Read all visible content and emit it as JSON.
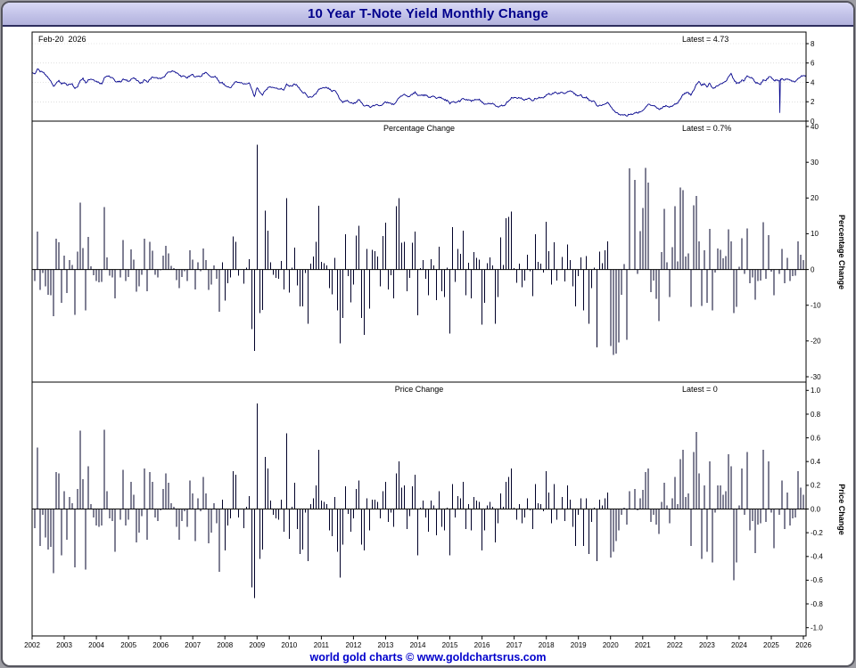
{
  "window": {
    "title": "10 Year T-Note Yield Monthly Change"
  },
  "footer": {
    "text": "world gold charts © www.goldchartsrus.com"
  },
  "colors": {
    "line": "#00008b",
    "bar": "#000028",
    "title_text": "#00008b",
    "titlebar_bg": "#c2c2e8",
    "footer_text": "#0000cc",
    "panel_border": "#000000",
    "grid_dotted": "#c9c9c9"
  },
  "x_axis": {
    "years": [
      "2002",
      "2003",
      "2004",
      "2005",
      "2006",
      "2007",
      "2008",
      "2009",
      "2010",
      "2011",
      "2012",
      "2013",
      "2014",
      "2015",
      "2016",
      "2017",
      "2018",
      "2019",
      "2020",
      "2021",
      "2022",
      "2023",
      "2024",
      "2025",
      "2026"
    ]
  },
  "chart_data": [
    {
      "type": "line",
      "name": "yield",
      "date_label": "Feb-20  2026",
      "latest_label": "Latest = 4.73",
      "latest_value": 4.73,
      "frequency": "monthly",
      "x_start": "2002-01",
      "x_end": "2026-02",
      "ylim": [
        0,
        9.2
      ],
      "yticks": [
        "8",
        "6",
        "4",
        "2",
        "0"
      ],
      "anomaly": {
        "index": 279,
        "low": 0.85
      },
      "values": [
        5.04,
        4.88,
        5.4,
        5.09,
        5.04,
        4.8,
        4.46,
        4.14,
        3.6,
        3.91,
        4.21,
        3.82,
        3.97,
        3.71,
        3.81,
        3.86,
        3.37,
        3.54,
        4.2,
        4.45,
        3.94,
        4.3,
        4.34,
        4.27,
        4.13,
        3.98,
        3.84,
        4.51,
        4.66,
        4.58,
        4.48,
        4.12,
        4.12,
        4.03,
        4.36,
        4.22,
        4.13,
        4.36,
        4.48,
        4.2,
        4.0,
        3.94,
        4.28,
        4.02,
        4.33,
        4.56,
        4.49,
        4.39,
        4.38,
        4.55,
        4.85,
        5.07,
        5.12,
        5.14,
        4.99,
        4.73,
        4.63,
        4.61,
        4.46,
        4.7,
        4.83,
        4.56,
        4.65,
        4.63,
        4.9,
        5.03,
        4.74,
        4.54,
        4.59,
        4.47,
        3.94,
        4.02,
        3.67,
        3.53,
        3.45,
        3.77,
        4.06,
        3.99,
        3.99,
        3.83,
        3.85,
        3.96,
        3.3,
        2.55,
        3.44,
        3.02,
        2.68,
        3.12,
        3.46,
        3.53,
        3.48,
        3.4,
        3.31,
        3.39,
        3.2,
        3.84,
        3.59,
        3.61,
        3.83,
        3.66,
        3.28,
        2.94,
        2.91,
        2.47,
        2.51,
        2.6,
        2.8,
        3.3,
        3.37,
        3.43,
        3.47,
        3.29,
        3.06,
        3.16,
        2.8,
        2.22,
        1.92,
        2.11,
        2.07,
        1.88,
        1.8,
        1.97,
        2.21,
        1.91,
        1.56,
        1.65,
        1.47,
        1.55,
        1.63,
        1.69,
        1.61,
        1.76,
        1.99,
        1.88,
        1.85,
        1.7,
        2.0,
        2.4,
        2.58,
        2.78,
        2.61,
        2.55,
        2.74,
        3.03,
        2.64,
        2.65,
        2.72,
        2.65,
        2.46,
        2.53,
        2.56,
        2.34,
        2.49,
        2.34,
        2.16,
        2.17,
        1.78,
        1.99,
        1.92,
        2.03,
        2.12,
        2.35,
        2.18,
        2.22,
        2.04,
        2.14,
        2.21,
        2.27,
        1.92,
        1.74,
        1.77,
        1.83,
        1.85,
        1.57,
        1.45,
        1.58,
        1.6,
        1.83,
        2.1,
        2.44,
        2.45,
        2.36,
        2.4,
        2.28,
        2.21,
        2.3,
        2.29,
        2.12,
        2.33,
        2.38,
        2.42,
        2.4,
        2.72,
        2.86,
        2.74,
        2.95,
        2.86,
        2.86,
        2.96,
        2.86,
        3.06,
        3.14,
        2.99,
        2.68,
        2.63,
        2.72,
        2.41,
        2.5,
        2.12,
        2.01,
        2.02,
        1.58,
        1.66,
        1.69,
        1.78,
        1.92,
        1.51,
        1.15,
        0.88,
        0.7,
        0.65,
        0.66,
        0.53,
        0.68,
        0.68,
        0.85,
        0.84,
        0.93,
        1.09,
        1.4,
        1.74,
        1.63,
        1.58,
        1.45,
        1.24,
        1.3,
        1.52,
        1.55,
        1.43,
        1.52,
        1.79,
        1.83,
        2.25,
        2.75,
        2.85,
        2.98,
        2.67,
        3.15,
        3.8,
        4.1,
        3.68,
        3.88,
        3.52,
        3.92,
        3.47,
        3.44,
        3.64,
        3.84,
        3.96,
        4.11,
        4.57,
        4.93,
        4.33,
        3.88,
        3.91,
        4.25,
        4.2,
        4.68,
        4.5,
        4.4,
        4.03,
        3.9,
        3.78,
        4.28,
        4.17,
        4.57,
        4.54,
        4.21,
        4.21,
        4.16,
        4.4,
        4.23,
        4.37,
        4.23,
        4.15,
        4.08,
        4.4,
        4.58,
        4.7,
        4.73
      ]
    },
    {
      "type": "bar",
      "name": "percentage-change",
      "title": "Percentage Change",
      "latest_label": "Latest = 0.7%",
      "latest_value": 0.7,
      "ylabel": "Percentage Change",
      "ylim": [
        -31.5,
        41.5
      ],
      "yticks": [
        "40",
        "30",
        "20",
        "10",
        "0",
        "-10",
        "-20",
        "-30"
      ],
      "derived_from": "yield",
      "transform": "pct_change",
      "transform_note": "bar[i] = (yield[i]-yield[i-1])/yield[i-1]*100"
    },
    {
      "type": "bar",
      "name": "price-change",
      "title": "Price Change",
      "latest_label": "Latest = 0",
      "latest_value": 0,
      "ylabel": "Price Change",
      "ylim": [
        -1.07,
        1.07
      ],
      "yticks": [
        "1.0",
        "0.8",
        "0.6",
        "0.4",
        "0.2",
        "0.0",
        "-0.2",
        "-0.4",
        "-0.6",
        "-0.8",
        "-1.0"
      ],
      "derived_from": "yield",
      "transform": "diff",
      "transform_note": "bar[i] = yield[i]-yield[i-1]"
    }
  ]
}
